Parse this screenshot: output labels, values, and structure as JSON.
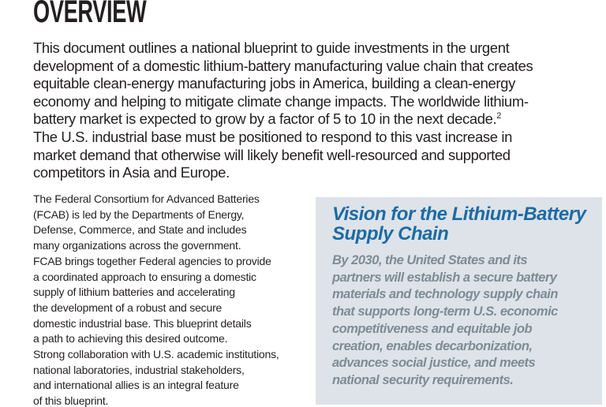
{
  "title": "OVERVIEW",
  "colors": {
    "text": "#231f20",
    "background": "#ffffff",
    "box_bg": "#dde3e8",
    "box_title": "#1c6ba5",
    "box_body": "#7e8c96"
  },
  "intro": {
    "text_before_sup": "This document outlines a national blueprint to guide investments in the urgent\ndevelopment of a domestic lithium-battery manufacturing value chain that creates\nequitable clean-energy manufacturing jobs in America, building a clean-energy\neconomy and helping to mitigate climate change impacts. The worldwide lithium-\nbattery market is expected to grow by a factor of 5 to 10 in the next decade.",
    "footnote_marker": "2",
    "text_after_sup": "\nThe U.S. industrial base must be positioned to respond to this vast increase in\nmarket demand that otherwise will likely benefit well-resourced and supported\ncompetitors in Asia and Europe."
  },
  "left_column": {
    "paragraph": "The Federal Consortium for Advanced Batteries\n(FCAB) is led by the Departments of Energy,\nDefense, Commerce, and State and includes\nmany organizations across the government.\nFCAB brings together Federal agencies to provide\na coordinated approach to ensuring a domestic\nsupply of lithium batteries and accelerating\nthe development of a robust and secure\ndomestic industrial base. This blueprint details\na path to achieving this desired outcome.\nStrong collaboration with U.S. academic institutions,\nnational laboratories, industrial stakeholders,\nand international allies is an integral feature\nof this blueprint."
  },
  "vision_box": {
    "title": "Vision for the Lithium-Battery\nSupply Chain",
    "body": "By 2030, the United States and its\npartners will establish a secure battery\nmaterials and technology supply chain\nthat supports long-term U.S. economic\ncompetitiveness and equitable job\ncreation, enables decarbonization,\nadvances social justice, and meets\nnational security requirements."
  }
}
